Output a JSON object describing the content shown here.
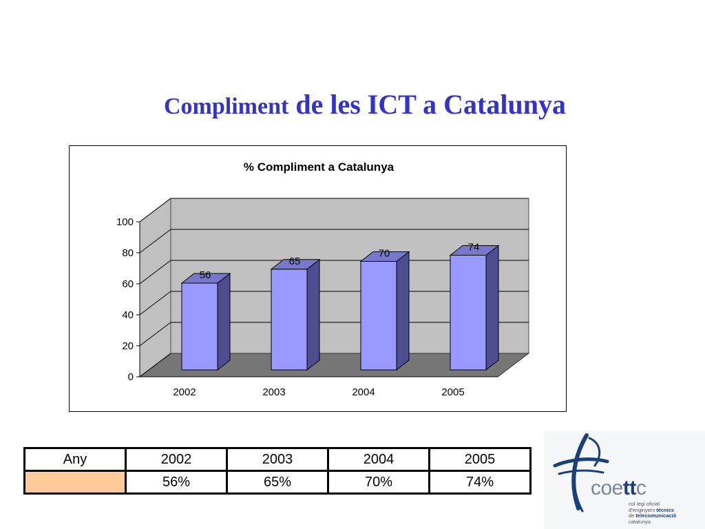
{
  "slide": {
    "title_part1": "Compliment",
    "title_part2": " de les ICT a Catalunya"
  },
  "chart_data": {
    "type": "bar",
    "title": "% Compliment a Catalunya",
    "categories": [
      "2002",
      "2003",
      "2004",
      "2005"
    ],
    "values": [
      56,
      65,
      70,
      74
    ],
    "data_labels": [
      "56",
      "65",
      "70",
      "74"
    ],
    "ylim": [
      0,
      100
    ],
    "yticks": [
      "0",
      "20",
      "40",
      "60",
      "80",
      "100"
    ],
    "xlabel": "",
    "ylabel": "",
    "grid": true,
    "style": "3d-column",
    "colors": {
      "bar_front": "#9999ff",
      "bar_side": "#4d4d8f",
      "bar_top": "#7777cc",
      "wall": "#c0c0c0",
      "floor": "#777777"
    }
  },
  "table": {
    "header": [
      "Any",
      "2002",
      "2003",
      "2004",
      "2005"
    ],
    "row": [
      "",
      "56%",
      "65%",
      "70%",
      "74%"
    ],
    "swatch_color": "#ffcc99"
  },
  "logo": {
    "word_light": "coe",
    "word_bold": "tt",
    "word_end": "c",
    "line1": "col·legi oficial",
    "line2_light": "d'enginyers ",
    "line2_bold": "tècnics",
    "line3_light": "de ",
    "line3_bold": "telecomunicació",
    "line4": "catalunya"
  }
}
